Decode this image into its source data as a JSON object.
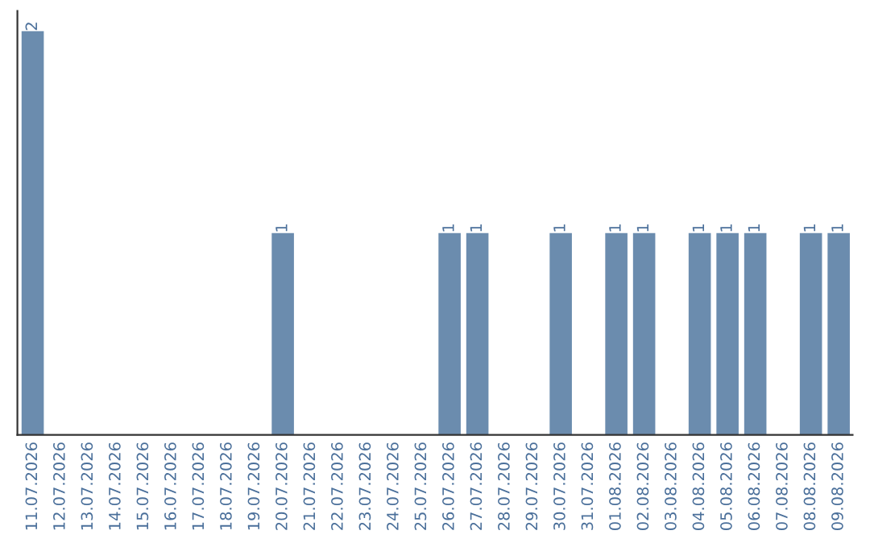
{
  "chart_data": {
    "type": "bar",
    "categories": [
      "11.07.2026",
      "12.07.2026",
      "13.07.2026",
      "14.07.2026",
      "15.07.2026",
      "16.07.2026",
      "17.07.2026",
      "18.07.2026",
      "19.07.2026",
      "20.07.2026",
      "21.07.2026",
      "22.07.2026",
      "23.07.2026",
      "24.07.2026",
      "25.07.2026",
      "26.07.2026",
      "27.07.2026",
      "28.07.2026",
      "29.07.2026",
      "30.07.2026",
      "31.07.2026",
      "01.08.2026",
      "02.08.2026",
      "03.08.2026",
      "04.08.2026",
      "05.08.2026",
      "06.08.2026",
      "07.08.2026",
      "08.08.2026",
      "09.08.2026"
    ],
    "values": [
      2,
      0,
      0,
      0,
      0,
      0,
      0,
      0,
      0,
      1,
      0,
      0,
      0,
      0,
      0,
      1,
      1,
      0,
      0,
      1,
      0,
      1,
      1,
      0,
      1,
      1,
      1,
      0,
      1,
      1
    ],
    "value_labels": [
      "2",
      null,
      null,
      null,
      null,
      null,
      null,
      null,
      null,
      "1",
      null,
      null,
      null,
      null,
      null,
      "1",
      "1",
      null,
      null,
      "1",
      null,
      "1",
      "1",
      null,
      "1",
      "1",
      "1",
      null,
      "1",
      "1"
    ],
    "color": "#6b8cae",
    "ylim": [
      0,
      2.1
    ],
    "tick_labels": "x",
    "grid": false,
    "legend": false
  }
}
